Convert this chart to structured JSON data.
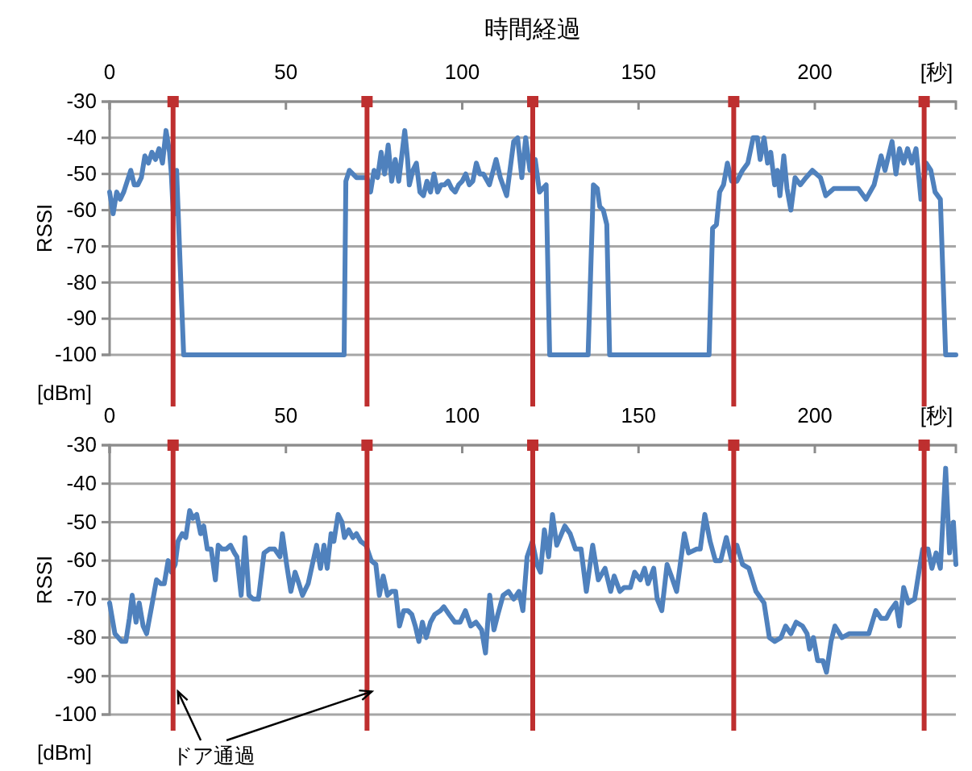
{
  "chart_data": [
    {
      "type": "line",
      "title": "時間経過",
      "xlabel": "[秒]",
      "ylabel": "RSSI",
      "annotations": [
        "[dBm]"
      ],
      "xlim": [
        0,
        240
      ],
      "xticks": [
        0,
        50,
        100,
        150,
        200
      ],
      "ylim": [
        -100,
        -30
      ],
      "yticks": [
        -30,
        -40,
        -50,
        -60,
        -70,
        -80,
        -90,
        -100
      ],
      "grid": "y",
      "line_style": "solid",
      "ref_lines": [
        {
          "axis": "x",
          "value": 18,
          "color": "#be2f2f"
        },
        {
          "axis": "x",
          "value": 73,
          "color": "#be2f2f"
        },
        {
          "axis": "x",
          "value": 120,
          "color": "#be2f2f"
        },
        {
          "axis": "x",
          "value": 177,
          "color": "#be2f2f"
        },
        {
          "axis": "x",
          "value": 231,
          "color": "#be2f2f"
        }
      ],
      "series": [
        {
          "color": "#4f81bd",
          "x": [
            0,
            1,
            2,
            3,
            4,
            5,
            6,
            7,
            8,
            9,
            10,
            11,
            12,
            13,
            14,
            15,
            16,
            17,
            17.5,
            18,
            18.5,
            19,
            20,
            21,
            66.5,
            67,
            68,
            70,
            73,
            74,
            75,
            76,
            77,
            78,
            79,
            80,
            81,
            82,
            83.7,
            84.5,
            85,
            86,
            87,
            88,
            89,
            90,
            91,
            92,
            93,
            94,
            95,
            96,
            97,
            98,
            99,
            100,
            101,
            102,
            103,
            104,
            105,
            106,
            107.7,
            109.6,
            110.8,
            112.6,
            114.6,
            115.7,
            116.9,
            118,
            119.2,
            120.7,
            121.9,
            123.8,
            124.8,
            135.7,
            137.2,
            138.3,
            139,
            140,
            141,
            141.8,
            170,
            171,
            172.1,
            173,
            174.1,
            175.2,
            176.4,
            177.9,
            179.5,
            181,
            182.5,
            183.7,
            184.5,
            185.6,
            186.6,
            187.5,
            188.6,
            189.4,
            190.1,
            191.2,
            192.1,
            193.2,
            194.4,
            195.9,
            197.5,
            199.3,
            201.6,
            203.1,
            205.4,
            207.7,
            210,
            212.3,
            214.5,
            216.8,
            218.8,
            219.9,
            221.9,
            223,
            224,
            225.2,
            226.3,
            227.5,
            228.7,
            230.1,
            231.6,
            232.9,
            234.1,
            235.6,
            237.1,
            240
          ],
          "values": [
            -55,
            -61,
            -55,
            -57,
            -55,
            -52,
            -49,
            -53,
            -53,
            -51,
            -45,
            -47,
            -44,
            -46,
            -43,
            -47,
            -38,
            -44,
            -50,
            -60,
            -61,
            -49,
            -75,
            -100,
            -100,
            -52,
            -49,
            -51,
            -51,
            -55,
            -49,
            -51,
            -44,
            -50,
            -42,
            -52,
            -46,
            -52,
            -38,
            -46,
            -53,
            -49,
            -47,
            -55,
            -56,
            -52,
            -55,
            -50,
            -55,
            -53,
            -53,
            -52,
            -54,
            -55,
            -53,
            -52,
            -50,
            -53,
            -52,
            -47,
            -50,
            -50,
            -53,
            -46,
            -51,
            -56,
            -41,
            -40,
            -51,
            -40,
            -49,
            -46,
            -55,
            -53,
            -100,
            -100,
            -53,
            -54,
            -59,
            -60,
            -64,
            -100,
            -100,
            -65,
            -64,
            -55,
            -53,
            -47,
            -52,
            -52,
            -49,
            -47,
            -40,
            -40,
            -46,
            -40,
            -47,
            -44,
            -53,
            -49,
            -56,
            -45,
            -54,
            -60,
            -51,
            -53,
            -51,
            -49,
            -51,
            -56,
            -54,
            -54,
            -54,
            -54,
            -57,
            -53,
            -45,
            -49,
            -41,
            -50,
            -43,
            -47,
            -43,
            -47,
            -43,
            -57,
            -47,
            -49,
            -55,
            -57,
            -100,
            -100
          ]
        }
      ]
    },
    {
      "type": "line",
      "xlabel": "[秒]",
      "ylabel": "RSSI",
      "annotations": [
        "[dBm]",
        {
          "text": "ドア通過",
          "x": 18,
          "y": -94
        }
      ],
      "xlim": [
        0,
        240
      ],
      "xticks": [
        0,
        50,
        100,
        150,
        200
      ],
      "ylim": [
        -100,
        -30
      ],
      "yticks": [
        -30,
        -40,
        -50,
        -60,
        -70,
        -80,
        -90,
        -100
      ],
      "grid": "y",
      "line_style": "solid",
      "ref_lines": [
        {
          "axis": "x",
          "value": 18,
          "color": "#be2f2f"
        },
        {
          "axis": "x",
          "value": 73,
          "color": "#be2f2f"
        },
        {
          "axis": "x",
          "value": 120,
          "color": "#be2f2f"
        },
        {
          "axis": "x",
          "value": 177,
          "color": "#be2f2f"
        },
        {
          "axis": "x",
          "value": 231,
          "color": "#be2f2f"
        }
      ],
      "series": [
        {
          "color": "#4f81bd",
          "x": [
            0,
            1.5,
            3.4,
            4.6,
            5.6,
            6.4,
            7.5,
            8.4,
            9.5,
            10.5,
            11.7,
            13.3,
            14.5,
            15.5,
            16.6,
            17.5,
            18.6,
            19.4,
            20.6,
            21.6,
            22.7,
            23.6,
            24.7,
            25.8,
            26.7,
            27.7,
            28.8,
            30,
            30.8,
            31.9,
            33.1,
            34.3,
            35.4,
            36.1,
            37.3,
            38.4,
            39.5,
            40.7,
            42.2,
            43.8,
            45.3,
            46.8,
            48.3,
            49,
            50.2,
            51.4,
            52.6,
            53.7,
            54.7,
            56.3,
            57.5,
            58.7,
            59.8,
            60.8,
            61.7,
            62.8,
            63.6,
            64.8,
            65.9,
            66.6,
            67.8,
            69,
            70,
            71.2,
            72.7,
            74.2,
            75.5,
            76.5,
            77.6,
            78.8,
            80,
            81.1,
            82.2,
            83.4,
            84.6,
            85.7,
            86.7,
            87.7,
            88.7,
            89.8,
            91,
            92.2,
            93.8,
            94.8,
            96.3,
            97.9,
            99.4,
            100.9,
            102.4,
            103.9,
            105.5,
            106.6,
            107.8,
            109,
            110.1,
            111.6,
            113.1,
            114.6,
            116.1,
            117.2,
            118.4,
            119.9,
            121.2,
            122.2,
            123.3,
            124.5,
            125.6,
            126.8,
            129.1,
            130.6,
            132.1,
            133.7,
            135.2,
            137,
            138.6,
            140.5,
            142.1,
            143.1,
            144.7,
            145.9,
            147.7,
            148.9,
            150.5,
            151.7,
            152.7,
            154.3,
            155.3,
            156.6,
            158.1,
            159.3,
            160.8,
            163,
            164.2,
            166.5,
            167.5,
            168.8,
            170.3,
            171.8,
            173.3,
            174.9,
            176.4,
            177.9,
            179.5,
            181.3,
            183.3,
            185.6,
            187.1,
            188.6,
            190.4,
            191.7,
            193.2,
            194.7,
            196.5,
            197.8,
            198.5,
            199.6,
            200.8,
            202.3,
            203.3,
            204.6,
            205.7,
            207.7,
            209.7,
            211.2,
            213,
            215.3,
            217.3,
            218.8,
            220.3,
            221.4,
            223,
            224,
            225.2,
            226.5,
            228.3,
            229.5,
            230.6,
            232.1,
            233.2,
            234.4,
            235.6,
            237.1,
            238.2,
            239.3,
            240
          ],
          "values": [
            -71,
            -79,
            -81,
            -81,
            -75,
            -69,
            -76,
            -71,
            -77,
            -79,
            -73,
            -65,
            -66,
            -66,
            -60,
            -63,
            -61,
            -55,
            -53,
            -54,
            -47,
            -49,
            -48,
            -53,
            -51,
            -57,
            -57,
            -65,
            -56,
            -57,
            -57,
            -56,
            -58,
            -59,
            -69,
            -54,
            -69,
            -70,
            -70,
            -58,
            -57,
            -57,
            -59,
            -53,
            -61,
            -68,
            -63,
            -66,
            -69,
            -66,
            -61,
            -56,
            -62,
            -56,
            -62,
            -53,
            -55,
            -48,
            -50,
            -54,
            -52,
            -54,
            -53,
            -55,
            -56,
            -60,
            -61,
            -69,
            -64,
            -69,
            -68,
            -68,
            -77,
            -73,
            -73,
            -74,
            -77,
            -81,
            -76,
            -80,
            -76,
            -74,
            -73,
            -72,
            -74,
            -76,
            -76,
            -73,
            -77,
            -76,
            -78,
            -84,
            -69,
            -78,
            -74,
            -69,
            -68,
            -70,
            -68,
            -73,
            -59,
            -55,
            -61,
            -63,
            -52,
            -59,
            -48,
            -56,
            -51,
            -53,
            -57,
            -57,
            -68,
            -56,
            -65,
            -62,
            -68,
            -64,
            -68,
            -67,
            -67,
            -63,
            -65,
            -62,
            -66,
            -62,
            -70,
            -73,
            -61,
            -64,
            -68,
            -53,
            -58,
            -57,
            -57,
            -48,
            -55,
            -60,
            -60,
            -54,
            -60,
            -56,
            -61,
            -62,
            -68,
            -71,
            -80,
            -81,
            -80,
            -77,
            -79,
            -76,
            -77,
            -79,
            -83,
            -80,
            -86,
            -86,
            -89,
            -81,
            -77,
            -80,
            -79,
            -79,
            -79,
            -79,
            -73,
            -75,
            -75,
            -73,
            -71,
            -77,
            -67,
            -71,
            -70,
            -63,
            -57,
            -57,
            -62,
            -58,
            -62,
            -36,
            -58,
            -50,
            -61
          ]
        }
      ]
    }
  ]
}
